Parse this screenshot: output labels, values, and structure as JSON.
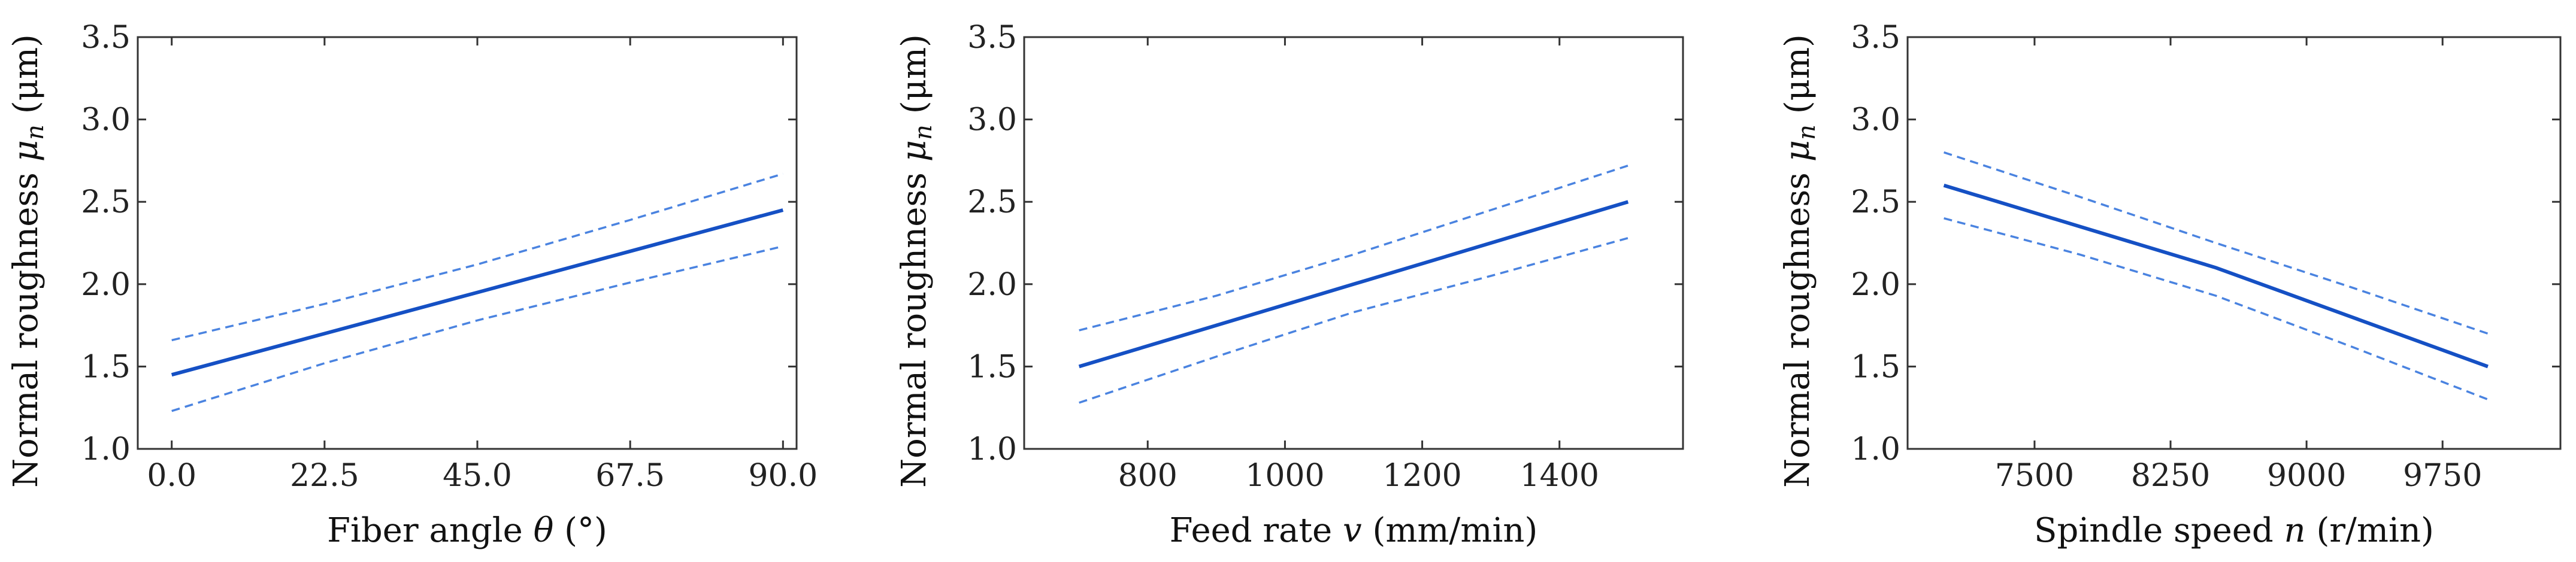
{
  "chart_data": [
    {
      "type": "line",
      "xlabel": "Fiber angle θ (°)",
      "ylabel": "Normal roughness μn (μm)",
      "x_ticks": [
        "0.0",
        "22.5",
        "45.0",
        "67.5",
        "90.0"
      ],
      "x_tick_values": [
        0,
        22.5,
        45,
        67.5,
        90
      ],
      "y_ticks": [
        "1.0",
        "1.5",
        "2.0",
        "2.5",
        "3.0",
        "3.5"
      ],
      "y_tick_values": [
        1.0,
        1.5,
        2.0,
        2.5,
        3.0,
        3.5
      ],
      "xlim": [
        -5,
        92
      ],
      "ylim": [
        1.0,
        3.5
      ],
      "grid": false,
      "series": [
        {
          "x": [
            0,
            22.5,
            45,
            67.5,
            90
          ],
          "values": [
            1.45,
            1.7,
            1.95,
            2.2,
            2.45
          ],
          "style": "solid"
        },
        {
          "x": [
            0,
            22.5,
            45,
            67.5,
            90
          ],
          "values": [
            1.66,
            1.88,
            2.12,
            2.39,
            2.67
          ],
          "style": "dashed"
        },
        {
          "x": [
            0,
            22.5,
            45,
            67.5,
            90
          ],
          "values": [
            1.23,
            1.52,
            1.78,
            2.01,
            2.23
          ],
          "style": "dashed"
        }
      ]
    },
    {
      "type": "line",
      "xlabel": "Feed rate v (mm/min)",
      "ylabel": "Normal roughness μn (μm)",
      "x_ticks": [
        "800",
        "1000",
        "1200",
        "1400"
      ],
      "x_tick_values": [
        800,
        1000,
        1200,
        1400
      ],
      "y_ticks": [
        "1.0",
        "1.5",
        "2.0",
        "2.5",
        "3.0",
        "3.5"
      ],
      "y_tick_values": [
        1.0,
        1.5,
        2.0,
        2.5,
        3.0,
        3.5
      ],
      "xlim": [
        620,
        1580
      ],
      "ylim": [
        1.0,
        3.5
      ],
      "grid": false,
      "series": [
        {
          "x": [
            700,
            900,
            1100,
            1300,
            1500
          ],
          "values": [
            1.5,
            1.75,
            2.0,
            2.25,
            2.5
          ],
          "style": "solid"
        },
        {
          "x": [
            700,
            900,
            1100,
            1300,
            1500
          ],
          "values": [
            1.72,
            1.93,
            2.18,
            2.45,
            2.72
          ],
          "style": "dashed"
        },
        {
          "x": [
            700,
            900,
            1100,
            1300,
            1500
          ],
          "values": [
            1.28,
            1.56,
            1.83,
            2.05,
            2.28
          ],
          "style": "dashed"
        }
      ]
    },
    {
      "type": "line",
      "xlabel": "Spindle speed n (r/min)",
      "ylabel": "Normal roughness μn (μm)",
      "x_ticks": [
        "7500",
        "8250",
        "9000",
        "9750"
      ],
      "x_tick_values": [
        7500,
        8250,
        9000,
        9750
      ],
      "y_ticks": [
        "1.0",
        "1.5",
        "2.0",
        "2.5",
        "3.0",
        "3.5"
      ],
      "y_tick_values": [
        1.0,
        1.5,
        2.0,
        2.5,
        3.0,
        3.5
      ],
      "xlim": [
        6800,
        10400
      ],
      "ylim": [
        1.0,
        3.5
      ],
      "grid": false,
      "series": [
        {
          "x": [
            7000,
            7750,
            8500,
            9250,
            10000
          ],
          "values": [
            2.6,
            2.35,
            2.1,
            1.8,
            1.5
          ],
          "style": "solid"
        },
        {
          "x": [
            7000,
            7750,
            8500,
            9250,
            10000
          ],
          "values": [
            2.8,
            2.53,
            2.25,
            1.98,
            1.7
          ],
          "style": "dashed"
        },
        {
          "x": [
            7000,
            7750,
            8500,
            9250,
            10000
          ],
          "values": [
            2.4,
            2.18,
            1.93,
            1.62,
            1.3
          ],
          "style": "dashed"
        }
      ]
    }
  ],
  "colors": {
    "line": "#1550c4",
    "band": "#4a83e0",
    "axis": "#333333"
  }
}
